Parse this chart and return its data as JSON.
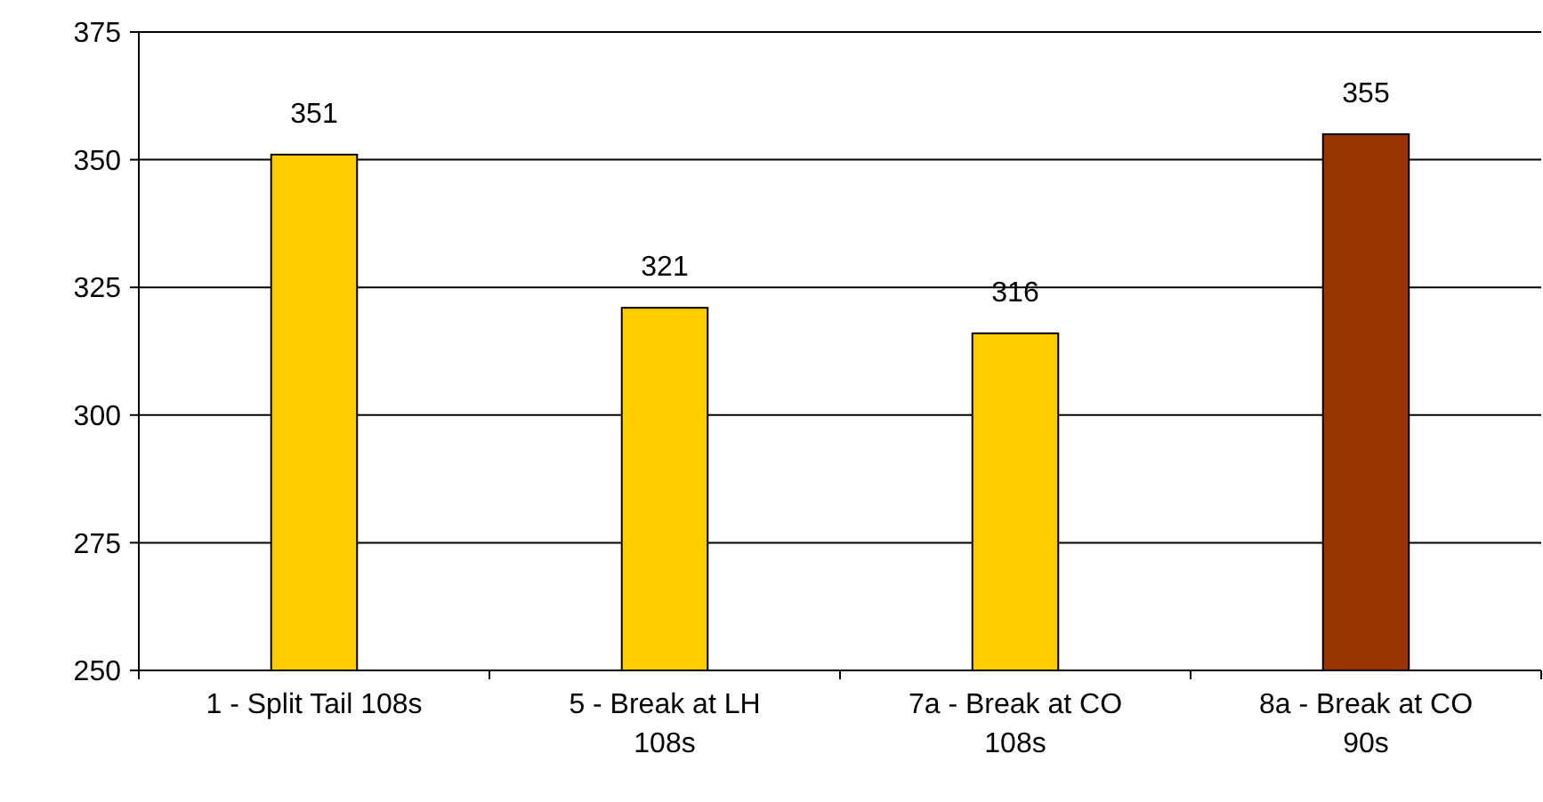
{
  "chart_data": {
    "type": "bar",
    "categories": [
      "1 - Split Tail 108s",
      "5 - Break at LH 108s",
      "7a - Break at CO 108s",
      "8a - Break at CO 90s"
    ],
    "values": [
      351,
      321,
      316,
      355
    ],
    "colors": [
      "#ffcc00",
      "#ffcc00",
      "#ffcc00",
      "#993300"
    ],
    "ylim": [
      250,
      375
    ],
    "yticks": [
      250,
      275,
      300,
      325,
      350,
      375
    ],
    "grid": "y",
    "data_labels": true
  }
}
